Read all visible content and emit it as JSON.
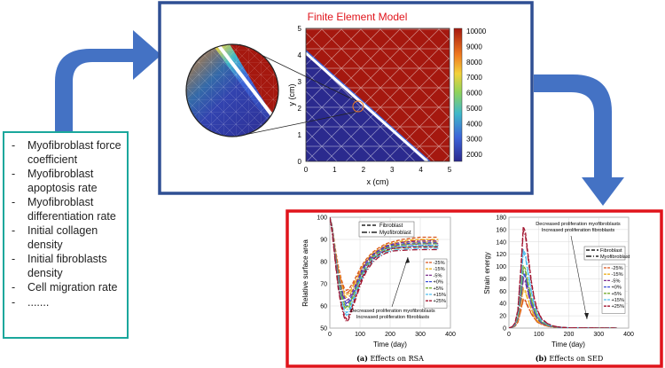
{
  "parameters": {
    "items": [
      "Myofibroblast force coefficient",
      "Myofibroblast apoptosis rate",
      "Myofibroblast differentiation rate",
      "Initial collagen density",
      "Initial fibroblasts density",
      "Cell migration rate",
      "......."
    ]
  },
  "fem": {
    "title": "Finite Element Model",
    "xlabel": "x (cm)",
    "ylabel": "y (cm)",
    "x_ticks": [
      "0",
      "1",
      "2",
      "3",
      "4",
      "5"
    ],
    "y_ticks": [
      "0",
      "1",
      "2",
      "3",
      "4",
      "5"
    ],
    "colorbar_ticks": [
      "10000",
      "9000",
      "8000",
      "7000",
      "6000",
      "5000",
      "4000",
      "3000",
      "2000"
    ],
    "colormap": [
      "#2b2a8e",
      "#3c63d8",
      "#3fb8c9",
      "#8fd35a",
      "#f2d23a",
      "#f07a1e",
      "#a5180f"
    ]
  },
  "colors": {
    "arrow": "#4472c4",
    "fem_border": "#2f4f93",
    "results_border": "#e0141b",
    "params_border": "#1aa79c"
  },
  "chart_data": [
    {
      "type": "line",
      "caption_letter": "(a)",
      "caption_text": "Effects on RSA",
      "xlabel": "Time (day)",
      "ylabel": "Relative surface area",
      "xlim": [
        0,
        400
      ],
      "ylim": [
        50,
        100
      ],
      "x_ticks": [
        0,
        100,
        200,
        300,
        400
      ],
      "y_ticks": [
        50,
        60,
        70,
        80,
        90,
        100
      ],
      "legend_top": [
        "Fibroblast",
        "Myofibroblast"
      ],
      "annotation": [
        "Decreased proliferation myofibroblasts",
        "Increased proliferation fibroblasts"
      ],
      "x": [
        0,
        8,
        18,
        28,
        38,
        48,
        55,
        62,
        75,
        90,
        105,
        120,
        140,
        160,
        185,
        210,
        240,
        270,
        300,
        330,
        360
      ],
      "series": [
        {
          "name": "-25%",
          "color": "#d9541a",
          "values": [
            100,
            96,
            86,
            78,
            72,
            68,
            67,
            67.5,
            70,
            74,
            78,
            81,
            84,
            86,
            88,
            89,
            90,
            90.5,
            91,
            91,
            91
          ]
        },
        {
          "name": "-15%",
          "color": "#edb120",
          "values": [
            100,
            96,
            85,
            76.5,
            70,
            66,
            65,
            65.5,
            68.5,
            72.5,
            77,
            80.5,
            83.5,
            85.5,
            87.5,
            88.5,
            89.3,
            89.8,
            90,
            90,
            90
          ]
        },
        {
          "name": "-5%",
          "color": "#7e2f8e",
          "values": [
            100,
            95.5,
            84,
            75,
            68,
            64,
            62.5,
            63,
            66.5,
            71,
            76,
            80,
            83,
            85,
            87,
            88,
            88.7,
            89,
            89.2,
            89.3,
            89.3
          ]
        },
        {
          "name": "+0%",
          "color": "#3a4fd6",
          "values": [
            100,
            95.5,
            83.5,
            74,
            67,
            62.5,
            61,
            61.5,
            65,
            70,
            75,
            79,
            82.5,
            84.5,
            86.5,
            87.5,
            88,
            88.3,
            88.5,
            88.5,
            88.5
          ]
        },
        {
          "name": "+5%",
          "color": "#77ac30",
          "values": [
            100,
            95,
            83,
            73,
            65.5,
            61,
            59.5,
            60,
            64,
            69,
            74,
            78,
            82,
            84,
            86,
            87,
            87.5,
            87.8,
            88,
            88,
            88
          ]
        },
        {
          "name": "+15%",
          "color": "#4dbeee",
          "values": [
            100,
            94.5,
            82,
            71,
            63,
            58.5,
            57,
            57.5,
            62,
            67.5,
            73,
            77,
            81,
            83.5,
            85.5,
            86.3,
            86.8,
            87,
            87.2,
            87.2,
            87.2
          ]
        },
        {
          "name": "+25%",
          "color": "#a2142f",
          "values": [
            100,
            94,
            81,
            69,
            61,
            56,
            54,
            55,
            60,
            66,
            72,
            76.5,
            80.5,
            83,
            85,
            86,
            86.3,
            86.5,
            86.6,
            86.6,
            86.6
          ]
        }
      ]
    },
    {
      "type": "line",
      "caption_letter": "(b)",
      "caption_text": "Effects on SED",
      "xlabel": "Time (day)",
      "ylabel": "Strain energy",
      "xlim": [
        0,
        400
      ],
      "ylim": [
        0,
        180
      ],
      "x_ticks": [
        0,
        100,
        200,
        300,
        400
      ],
      "y_ticks": [
        0,
        20,
        40,
        60,
        80,
        100,
        120,
        140,
        160,
        180
      ],
      "legend_top": [
        "Fibroblast",
        "Myofibroblast"
      ],
      "annotation": [
        "Decreased proliferation myofibroblasts",
        "Increased proliferation fibroblasts"
      ],
      "x": [
        0,
        10,
        20,
        30,
        40,
        48,
        55,
        65,
        75,
        85,
        95,
        110,
        130,
        150,
        175,
        200,
        250,
        300,
        360
      ],
      "series": [
        {
          "name": "-25%",
          "color": "#d9541a",
          "values": [
            0,
            1,
            3,
            10,
            30,
            48,
            45,
            34,
            24,
            16,
            10,
            6,
            3,
            1.5,
            0.6,
            0.3,
            0.1,
            0,
            0
          ]
        },
        {
          "name": "-15%",
          "color": "#edb120",
          "values": [
            0,
            1,
            4,
            13,
            40,
            65,
            60,
            45,
            31,
            20,
            12,
            7,
            3.5,
            1.8,
            0.7,
            0.3,
            0.1,
            0,
            0
          ]
        },
        {
          "name": "-5%",
          "color": "#7e2f8e",
          "values": [
            0,
            1,
            4,
            16,
            50,
            82,
            77,
            57,
            39,
            25,
            15,
            8,
            4,
            2,
            0.8,
            0.3,
            0.1,
            0,
            0
          ]
        },
        {
          "name": "+0%",
          "color": "#3a4fd6",
          "values": [
            0,
            1,
            5,
            18,
            57,
            92,
            86,
            64,
            43,
            28,
            17,
            9,
            4.5,
            2.2,
            0.9,
            0.4,
            0.1,
            0,
            0
          ]
        },
        {
          "name": "+5%",
          "color": "#77ac30",
          "values": [
            0,
            1,
            5,
            20,
            63,
            102,
            96,
            71,
            48,
            31,
            19,
            10,
            5,
            2.4,
            1,
            0.4,
            0.1,
            0,
            0
          ]
        },
        {
          "name": "+15%",
          "color": "#4dbeee",
          "values": [
            0,
            1.5,
            6,
            25,
            78,
            128,
            120,
            89,
            60,
            38,
            23,
            12,
            6,
            2.8,
            1.1,
            0.5,
            0.1,
            0,
            0
          ]
        },
        {
          "name": "+25%",
          "color": "#a2142f",
          "values": [
            0,
            2,
            8,
            30,
            98,
            165,
            156,
            115,
            76,
            48,
            29,
            15,
            7,
            3.2,
            1.2,
            0.5,
            0.1,
            0,
            0
          ]
        }
      ]
    }
  ]
}
